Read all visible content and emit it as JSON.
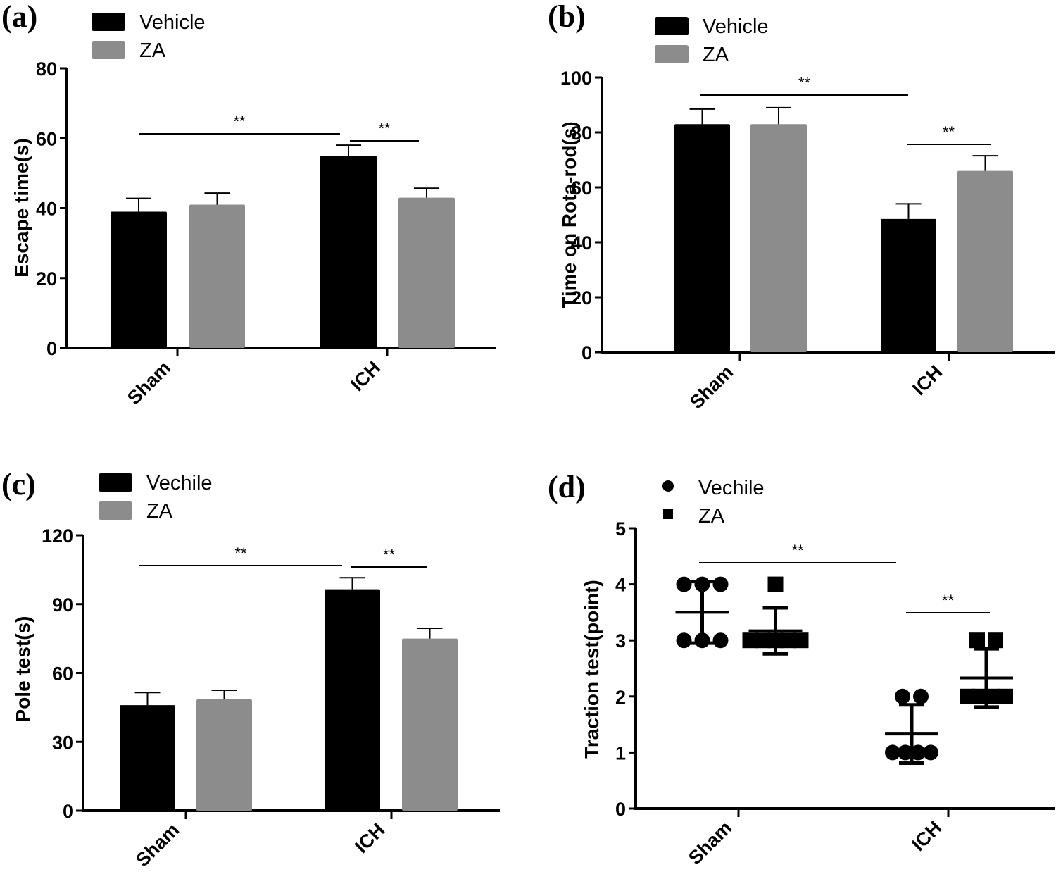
{
  "chart_data": [
    {
      "panel": "(a)",
      "type": "bar",
      "categories": [
        "Sham",
        "ICH"
      ],
      "series": [
        {
          "name": "Vehicle",
          "color": "#000000",
          "values": [
            39,
            55
          ],
          "errors": [
            3.8,
            3.0
          ]
        },
        {
          "name": "ZA",
          "color": "#8c8c8c",
          "values": [
            41,
            43
          ],
          "errors": [
            3.3,
            2.7
          ]
        }
      ],
      "ylabel": "Escape time(s)",
      "xlabel": "",
      "ylim": [
        0,
        80
      ],
      "yticks": [
        "0",
        "20",
        "40",
        "60",
        "80"
      ],
      "grid": false,
      "legend": "top-left",
      "significance": [
        {
          "from": "Sham",
          "to": "ICH Vehicle",
          "label": "**",
          "level": 61.5
        },
        {
          "from": "ICH Vehicle",
          "to": "ICH ZA",
          "label": "**",
          "level": 61.5
        }
      ]
    },
    {
      "panel": "(b)",
      "type": "bar",
      "categories": [
        "Sham",
        "ICH"
      ],
      "series": [
        {
          "name": "Vehicle",
          "color": "#000000",
          "values": [
            83,
            48.5
          ],
          "errors": [
            5.5,
            5.5
          ]
        },
        {
          "name": "ZA",
          "color": "#8c8c8c",
          "values": [
            83,
            66
          ],
          "errors": [
            6.0,
            5.5
          ]
        }
      ],
      "ylabel": "Time on Rota-rod(s)",
      "xlabel": "",
      "ylim": [
        0,
        100
      ],
      "yticks": [
        "0",
        "20",
        "40",
        "60",
        "80",
        "100"
      ],
      "grid": false,
      "legend": "top-left",
      "significance": [
        {
          "from": "Sham",
          "to": "ICH Vehicle",
          "label": "**",
          "level": 94
        },
        {
          "from": "ICH Vehicle",
          "to": "ICH ZA",
          "label": "**",
          "level": 76
        }
      ]
    },
    {
      "panel": "(c)",
      "type": "bar",
      "categories": [
        "Sham",
        "ICH"
      ],
      "series": [
        {
          "name": "Vechile",
          "color": "#000000",
          "values": [
            46,
            96.5
          ],
          "errors": [
            5.5,
            5.0
          ]
        },
        {
          "name": "ZA",
          "color": "#8c8c8c",
          "values": [
            48.5,
            75
          ],
          "errors": [
            4.0,
            4.5
          ]
        }
      ],
      "ylabel": "Pole test(s)",
      "xlabel": "",
      "ylim": [
        0,
        120
      ],
      "yticks": [
        "0",
        "30",
        "60",
        "90",
        "120"
      ],
      "grid": false,
      "legend": "top-left",
      "significance": [
        {
          "from": "Sham",
          "to": "ICH Vehicle",
          "label": "**",
          "level": 108
        },
        {
          "from": "ICH Vehicle",
          "to": "ICH ZA",
          "label": "**",
          "level": 108
        }
      ]
    },
    {
      "panel": "(d)",
      "type": "scatter",
      "categories": [
        "Sham",
        "ICH"
      ],
      "series": [
        {
          "name": "Vechile",
          "marker": "circle",
          "color": "#000000",
          "points": [
            [
              4,
              4,
              4,
              3,
              3,
              3
            ],
            [
              2,
              2,
              1,
              1,
              1,
              1
            ]
          ],
          "means": [
            3.5,
            1.33
          ],
          "sd": [
            0.55,
            0.52
          ]
        },
        {
          "name": "ZA",
          "marker": "square",
          "color": "#000000",
          "points": [
            [
              4,
              3,
              3,
              3,
              3,
              3
            ],
            [
              3,
              3,
              2,
              2,
              2,
              2
            ]
          ],
          "means": [
            3.17,
            2.33
          ],
          "sd": [
            0.41,
            0.52
          ]
        }
      ],
      "ylabel": "Traction test(point)",
      "xlabel": "",
      "ylim": [
        0,
        5
      ],
      "yticks": [
        "0",
        "1",
        "2",
        "3",
        "4",
        "5"
      ],
      "grid": false,
      "legend": "top-left",
      "significance": [
        {
          "from": "Sham",
          "to": "ICH Vehicle",
          "label": "**",
          "level": 4.45
        },
        {
          "from": "ICH Vehicle",
          "to": "ICH ZA",
          "label": "**",
          "level": 3.35
        }
      ]
    }
  ]
}
